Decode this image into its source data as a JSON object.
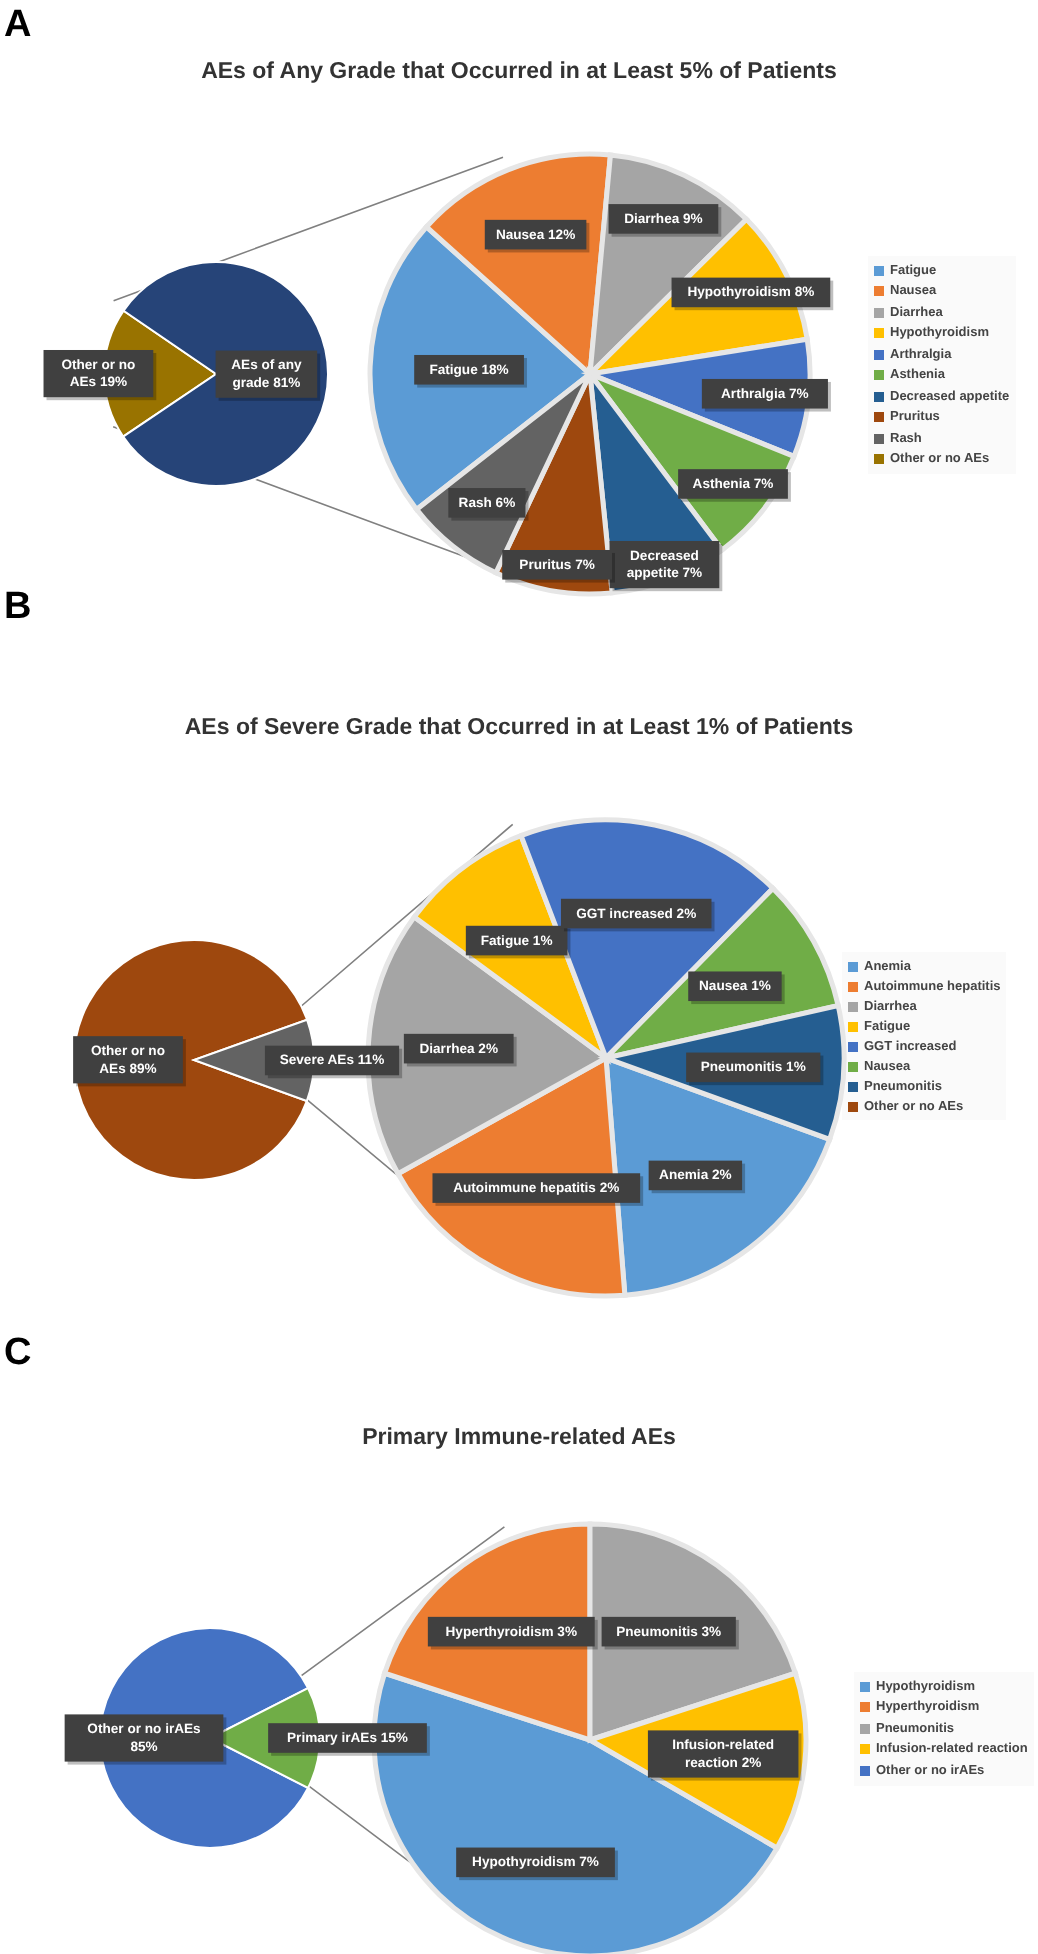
{
  "chart_data": [
    {
      "type": "pie",
      "categories": [
        "Other or no AEs",
        "AEs of any grade"
      ],
      "values": [
        19,
        81
      ],
      "colors": [
        "#997300",
        "#264478"
      ],
      "value_labels": [
        "19%",
        "81%"
      ],
      "legend": "right"
    },
    {
      "type": "pie",
      "title": "AEs of Any Grade that Occurred in at Least 5% of Patients",
      "annotations": [
        "A"
      ],
      "categories": [
        "Fatigue",
        "Nausea",
        "Diarrhea",
        "Hypothyroidism",
        "Arthralgia",
        "Asthenia",
        "Decreased appetite",
        "Pruritus",
        "Rash"
      ],
      "values": [
        18,
        12,
        9,
        8,
        7,
        7,
        7,
        7,
        6
      ],
      "colors": [
        "#5b9bd5",
        "#ed7d31",
        "#a5a5a5",
        "#ffc000",
        "#4472c4",
        "#70ad47",
        "#255e91",
        "#9e480e",
        "#636363"
      ],
      "value_labels": [
        "18%",
        "12%",
        "9%",
        "8%",
        "7%",
        "7%",
        "7%",
        "7%",
        "6%"
      ],
      "legend": "right"
    },
    {
      "type": "pie",
      "categories": [
        "Other or no AEs",
        "Severe AEs"
      ],
      "values": [
        89,
        11
      ],
      "colors": [
        "#9e480e",
        "#636363"
      ],
      "value_labels": [
        "89%",
        "11%"
      ],
      "legend": "right"
    },
    {
      "type": "pie",
      "title": "AEs of Severe Grade that Occurred in at Least 1% of Patients",
      "annotations": [
        "B"
      ],
      "categories": [
        "Anemia",
        "Autoimmune hepatitis",
        "Diarrhea",
        "Fatigue",
        "GGT increased",
        "Nausea",
        "Pneumonitis"
      ],
      "values": [
        2,
        2,
        2,
        1,
        2,
        1,
        1
      ],
      "colors": [
        "#5b9bd5",
        "#ed7d31",
        "#a5a5a5",
        "#ffc000",
        "#4472c4",
        "#70ad47",
        "#255e91"
      ],
      "value_labels": [
        "2%",
        "2%",
        "2%",
        "1%",
        "2%",
        "1%",
        "1%"
      ],
      "legend": "right"
    },
    {
      "type": "pie",
      "categories": [
        "Other or no irAEs",
        "Primary irAEs"
      ],
      "values": [
        85,
        15
      ],
      "colors": [
        "#4472c4",
        "#70ad47"
      ],
      "value_labels": [
        "85%",
        "15%"
      ],
      "legend": "right"
    },
    {
      "type": "pie",
      "title": "Primary Immune-related AEs",
      "annotations": [
        "C"
      ],
      "categories": [
        "Hypothyroidism",
        "Hyperthyroidism",
        "Pneumonitis",
        "Infusion-related reaction"
      ],
      "values": [
        7,
        3,
        3,
        2
      ],
      "colors": [
        "#5b9bd5",
        "#ed7d31",
        "#a5a5a5",
        "#ffc000"
      ],
      "value_labels": [
        "7%",
        "3%",
        "3%",
        "2%"
      ],
      "legend": "right"
    }
  ]
}
